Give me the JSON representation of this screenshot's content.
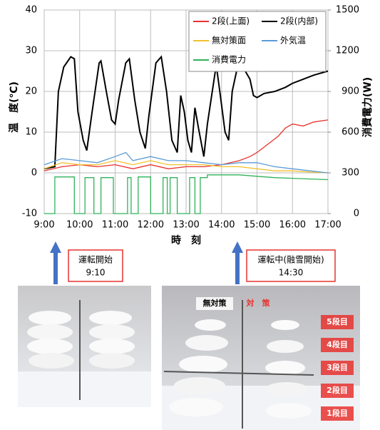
{
  "chart_data": {
    "type": "line",
    "ylabel": "温　度(℃)",
    "y2label": "消費電力(W)",
    "xlabel": "時　刻",
    "xlim": [
      9,
      17
    ],
    "ylim": [
      -10,
      40
    ],
    "y2lim": [
      0,
      1500
    ],
    "xticks": [
      {
        "value": 9,
        "label": "9:00"
      },
      {
        "value": 10,
        "label": "10:00"
      },
      {
        "value": 11,
        "label": "11:00"
      },
      {
        "value": 12,
        "label": "12:00"
      },
      {
        "value": 13,
        "label": "13:00"
      },
      {
        "value": 14,
        "label": "14:00"
      },
      {
        "value": 15,
        "label": "15:00"
      },
      {
        "value": 16,
        "label": "16:00"
      },
      {
        "value": 17,
        "label": "17:00"
      }
    ],
    "yticks": [
      -10,
      0,
      10,
      20,
      30,
      40
    ],
    "y2ticks": [
      0,
      300,
      600,
      900,
      1200,
      1500
    ],
    "grid": true,
    "legend": "upper right",
    "series": [
      {
        "name": "2段(上面)",
        "color": "#e8322f",
        "x": [
          9.0,
          9.5,
          10.0,
          10.5,
          11.0,
          11.5,
          12.0,
          12.5,
          13.0,
          13.5,
          14.0,
          14.5,
          14.8,
          15.0,
          15.3,
          15.6,
          15.8,
          16.0,
          16.3,
          16.6,
          17.0
        ],
        "values": [
          0.5,
          1.5,
          2,
          1.5,
          2,
          1,
          2,
          1,
          1.5,
          1.5,
          2,
          3,
          4,
          5,
          7,
          9,
          11,
          12,
          11.5,
          12.5,
          13
        ]
      },
      {
        "name": "2段(内部)",
        "color": "#000000",
        "x": [
          9.0,
          9.3,
          9.4,
          9.55,
          9.75,
          9.85,
          9.95,
          10.1,
          10.2,
          10.35,
          10.55,
          10.6,
          10.75,
          10.9,
          11.0,
          11.1,
          11.3,
          11.4,
          11.55,
          11.7,
          11.85,
          11.95,
          12.15,
          12.3,
          12.45,
          12.6,
          12.75,
          12.85,
          12.95,
          13.05,
          13.15,
          13.25,
          13.35,
          13.5,
          13.6,
          13.85,
          13.95,
          14.1,
          14.2,
          14.3,
          14.45,
          14.6,
          14.8,
          14.9,
          15.0,
          15.2,
          15.5,
          15.8,
          16.0,
          16.3,
          16.6,
          17.0
        ],
        "values": [
          1,
          1.5,
          20,
          26,
          28.5,
          28,
          15,
          8,
          5.5,
          15,
          27,
          27.5,
          20,
          13,
          12,
          18,
          27,
          28,
          18,
          10,
          6,
          14,
          27,
          28.5,
          20,
          8,
          5,
          19,
          15,
          8,
          5,
          16,
          11,
          4,
          12,
          26.5,
          20,
          10,
          8,
          20,
          26,
          26,
          23,
          19,
          18.5,
          19.5,
          20,
          21,
          22,
          23,
          24,
          25
        ]
      },
      {
        "name": "無対策面",
        "color": "#f2c12e",
        "x": [
          9.0,
          9.5,
          10.0,
          10.5,
          11.0,
          11.5,
          12.0,
          12.5,
          13.0,
          13.5,
          14.0,
          14.5,
          15.0,
          15.5,
          16.0,
          16.5,
          17.0
        ],
        "values": [
          1,
          2.5,
          2,
          2,
          3,
          2,
          3,
          2,
          2,
          2,
          1.5,
          1.5,
          1,
          0.5,
          0.5,
          0.2,
          0
        ]
      },
      {
        "name": "外気温",
        "color": "#5b9bd5",
        "x": [
          9.0,
          9.5,
          10.0,
          10.5,
          11.0,
          11.3,
          11.5,
          12.0,
          12.5,
          13.0,
          13.5,
          14.0,
          14.5,
          15.0,
          15.5,
          16.0,
          16.5,
          17.0
        ],
        "values": [
          2,
          3.5,
          3,
          2.5,
          4,
          5,
          3,
          4,
          3,
          3,
          2.5,
          2,
          2.5,
          2.5,
          1.5,
          1,
          0.5,
          0
        ]
      },
      {
        "name": "消費電力",
        "color": "#2fb35a",
        "axis": "y2",
        "x": [
          9.0,
          9.3,
          9.3,
          9.85,
          9.85,
          10.15,
          10.15,
          10.4,
          10.4,
          10.6,
          10.6,
          10.95,
          10.95,
          11.35,
          11.35,
          11.45,
          11.45,
          11.65,
          11.65,
          12.0,
          12.0,
          12.35,
          12.35,
          12.47,
          12.47,
          12.55,
          12.55,
          12.75,
          12.75,
          13.1,
          13.1,
          13.25,
          13.25,
          13.4,
          13.4,
          13.6,
          13.6,
          14.5,
          15.0,
          15.5,
          16.0,
          16.5,
          17.0
        ],
        "values": [
          0,
          0,
          270,
          270,
          0,
          0,
          265,
          265,
          0,
          0,
          265,
          265,
          0,
          0,
          265,
          265,
          0,
          0,
          270,
          270,
          0,
          0,
          265,
          265,
          0,
          0,
          265,
          265,
          0,
          0,
          265,
          265,
          0,
          0,
          265,
          265,
          285,
          285,
          275,
          265,
          260,
          255,
          250
        ]
      }
    ]
  },
  "annotations": [
    {
      "lines": [
        "運転開始",
        "9:10"
      ]
    },
    {
      "lines": [
        "運転中(融雪開始)",
        "14:30"
      ]
    }
  ],
  "photos": {
    "labels": [
      "無対策",
      "対　策"
    ],
    "stages": [
      "5段目",
      "4段目",
      "3段目",
      "2段目",
      "1段目"
    ]
  }
}
